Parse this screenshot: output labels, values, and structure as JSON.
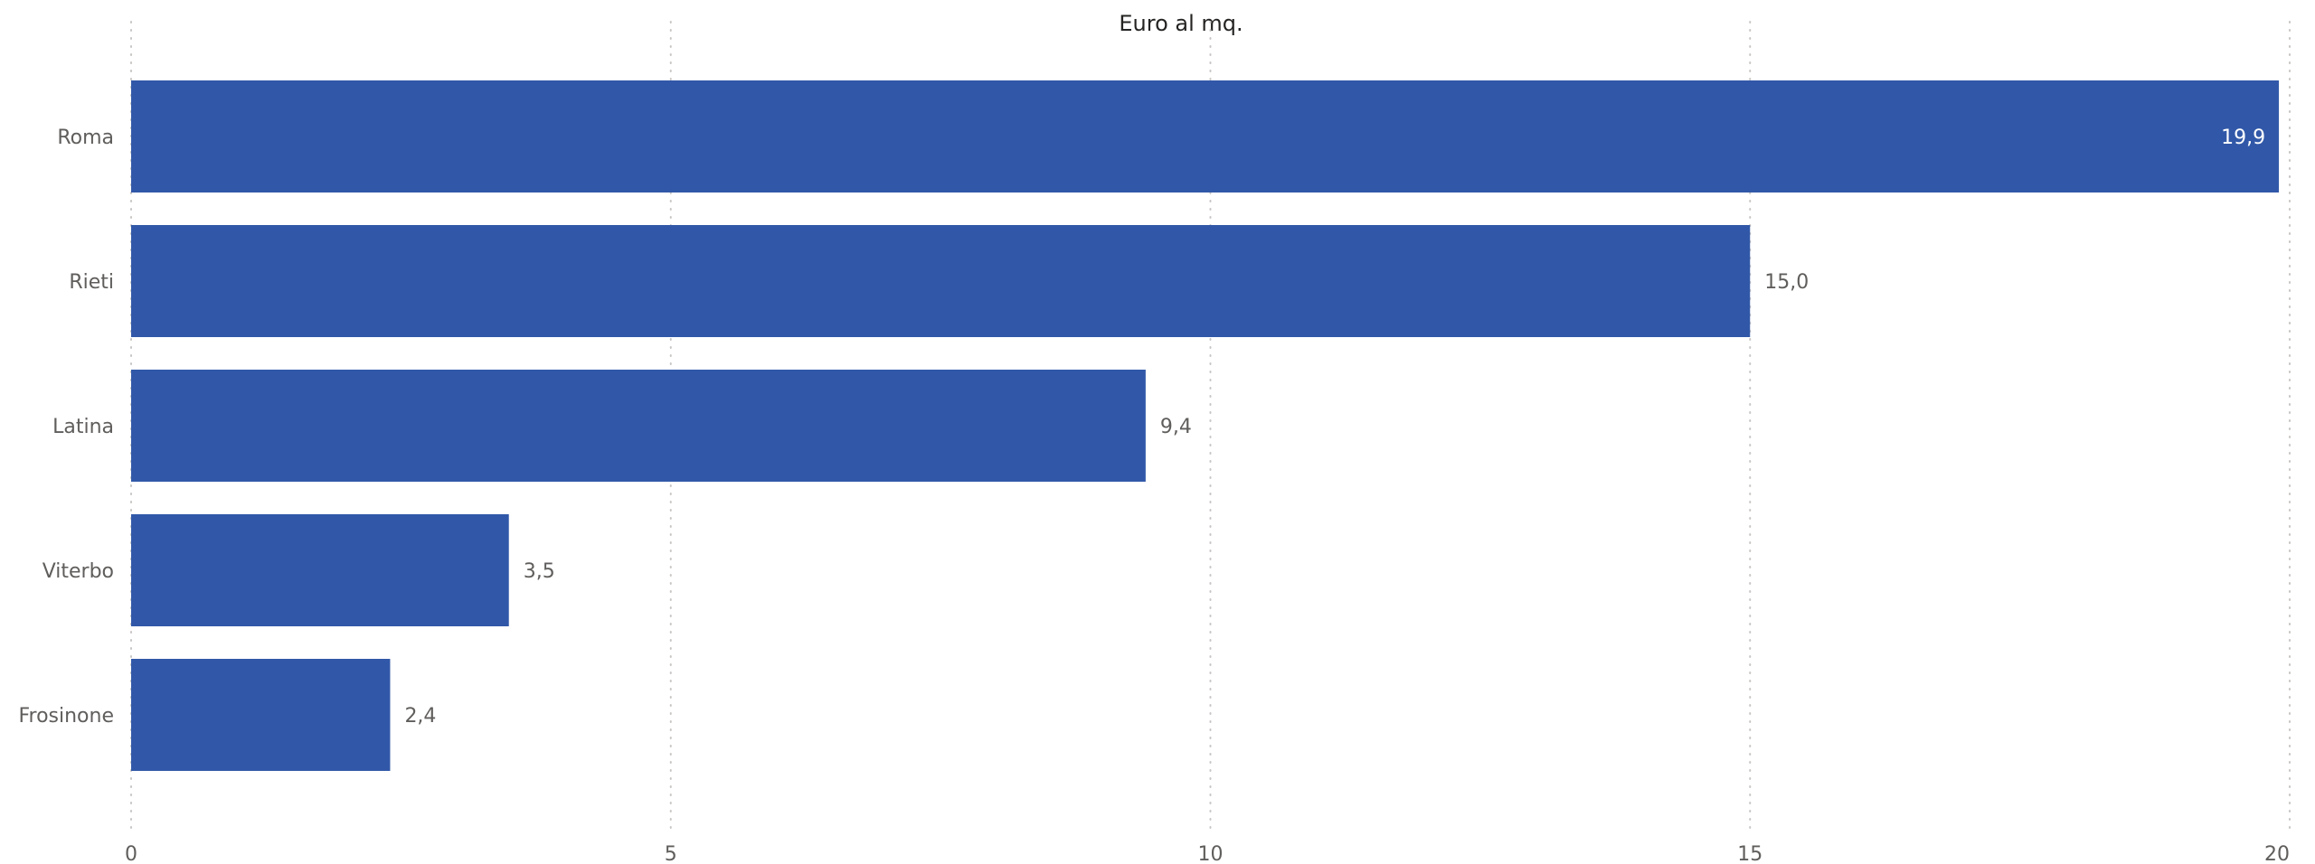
{
  "chart_data": {
    "type": "bar",
    "orientation": "horizontal",
    "title": "Euro al mq.",
    "xlabel": "",
    "ylabel": "",
    "categories": [
      "Roma",
      "Rieti",
      "Latina",
      "Viterbo",
      "Frosinone"
    ],
    "values": [
      19.9,
      15.0,
      9.4,
      3.5,
      2.4
    ],
    "data_labels": [
      "19,9",
      "15,0",
      "9,4",
      "3,5",
      "2,4"
    ],
    "xlim": [
      0,
      20
    ],
    "xticks": [
      0,
      5,
      10,
      15,
      20
    ],
    "xtick_labels": [
      "0",
      "5",
      "10",
      "15",
      "20"
    ],
    "grid": "vertical dotted",
    "legend": "none",
    "colors": {
      "bar": "#3158a8",
      "grid": "#c8c6c4",
      "text": "#605e5c",
      "title": "#252423",
      "label_inside": "#ffffff"
    }
  }
}
